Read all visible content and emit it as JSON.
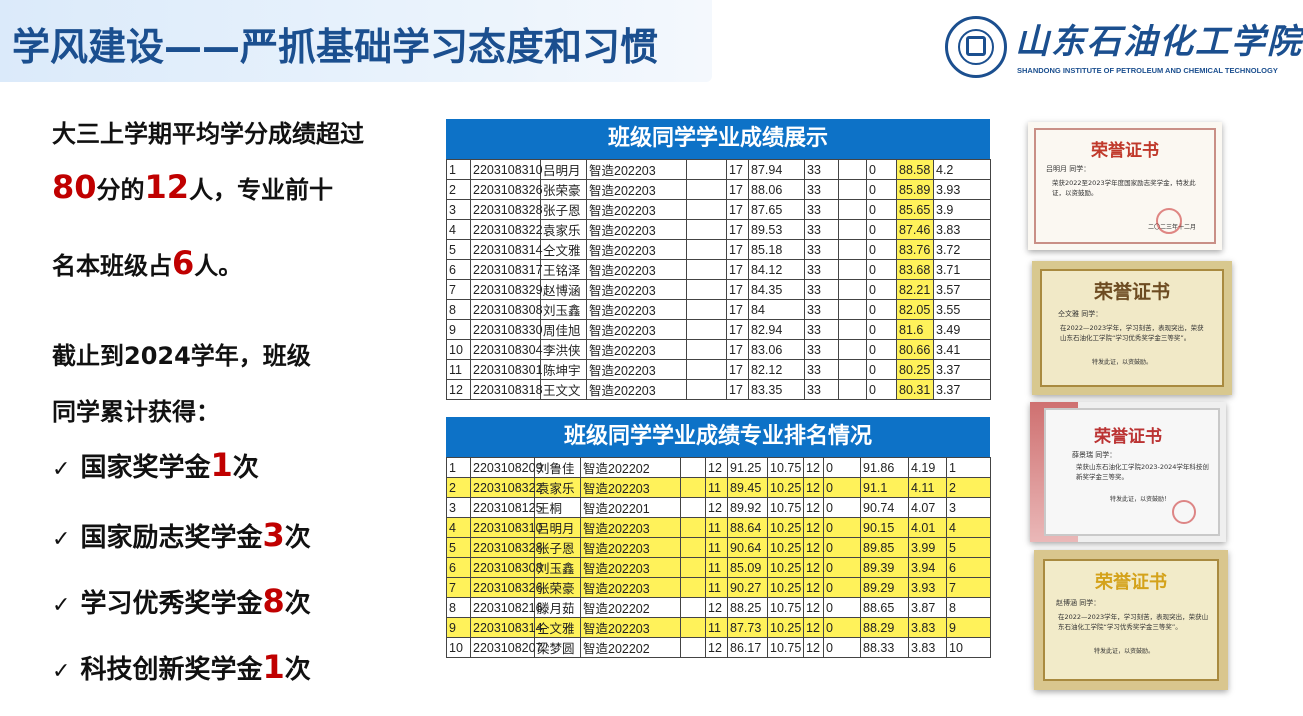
{
  "header": {
    "title": "学风建设——严抓基础学习态度和习惯"
  },
  "logo": {
    "cn": "山东石油化工学院",
    "en": "SHANDONG INSTITUTE OF PETROLEUM AND CHEMICAL TECHNOLOGY"
  },
  "left": {
    "p1_line1": "大三上学期平均学分成绩超过",
    "p1_n1": "80",
    "p1_t1": "分的",
    "p1_n2": "12",
    "p1_t2": "人，专业前十",
    "p1_t3": "名本班级占",
    "p1_n3": "6",
    "p1_t4": "人。",
    "p2_line1": "截止到2024学年，班级",
    "p2_line2": "同学累计获得：",
    "checkmark": "✓",
    "awards": [
      {
        "pre": "国家奖学金",
        "num": "1",
        "post": "次"
      },
      {
        "pre": "国家励志奖学金",
        "num": "3",
        "post": "次"
      },
      {
        "pre": "学习优秀奖学金",
        "num": "8",
        "post": "次"
      },
      {
        "pre": "科技创新奖学金",
        "num": "1",
        "post": "次"
      }
    ]
  },
  "table1": {
    "title": "班级同学学业成绩展示",
    "rows": [
      [
        "1",
        "2203108310",
        "吕明月",
        "智造202203",
        "",
        "17",
        "87.94",
        "33",
        "",
        "0",
        "88.58",
        "4.2"
      ],
      [
        "2",
        "2203108326",
        "张荣豪",
        "智造202203",
        "",
        "17",
        "88.06",
        "33",
        "",
        "0",
        "85.89",
        "3.93"
      ],
      [
        "3",
        "2203108328",
        "张子恩",
        "智造202203",
        "",
        "17",
        "87.65",
        "33",
        "",
        "0",
        "85.65",
        "3.9"
      ],
      [
        "4",
        "2203108322",
        "袁家乐",
        "智造202203",
        "",
        "17",
        "89.53",
        "33",
        "",
        "0",
        "87.46",
        "3.83"
      ],
      [
        "5",
        "2203108314",
        "仝文雅",
        "智造202203",
        "",
        "17",
        "85.18",
        "33",
        "",
        "0",
        "83.76",
        "3.72"
      ],
      [
        "6",
        "2203108317",
        "王铭泽",
        "智造202203",
        "",
        "17",
        "84.12",
        "33",
        "",
        "0",
        "83.68",
        "3.71"
      ],
      [
        "7",
        "2203108329",
        "赵博涵",
        "智造202203",
        "",
        "17",
        "84.35",
        "33",
        "",
        "0",
        "82.21",
        "3.57"
      ],
      [
        "8",
        "2203108308",
        "刘玉鑫",
        "智造202203",
        "",
        "17",
        "84",
        "33",
        "",
        "0",
        "82.05",
        "3.55"
      ],
      [
        "9",
        "2203108330",
        "周佳旭",
        "智造202203",
        "",
        "17",
        "82.94",
        "33",
        "",
        "0",
        "81.6",
        "3.49"
      ],
      [
        "10",
        "2203108304",
        "李洪侠",
        "智造202203",
        "",
        "17",
        "83.06",
        "33",
        "",
        "0",
        "80.66",
        "3.41"
      ],
      [
        "11",
        "2203108301",
        "陈坤宇",
        "智造202203",
        "",
        "17",
        "82.12",
        "33",
        "",
        "0",
        "80.25",
        "3.37"
      ],
      [
        "12",
        "2203108318",
        "王文文",
        "智造202203",
        "",
        "17",
        "83.35",
        "33",
        "",
        "0",
        "80.31",
        "3.37"
      ]
    ]
  },
  "table2": {
    "title": "班级同学学业成绩专业排名情况",
    "rows": [
      {
        "c": [
          "1",
          "2203108209",
          "刘鲁佳",
          "智造202202",
          "",
          "12",
          "91.25",
          "10.75",
          "12",
          "0",
          "91.86",
          "4.19",
          "1"
        ],
        "hl": false
      },
      {
        "c": [
          "2",
          "2203108322",
          "袁家乐",
          "智造202203",
          "",
          "11",
          "89.45",
          "10.25",
          "12",
          "0",
          "91.1",
          "4.11",
          "2"
        ],
        "hl": true
      },
      {
        "c": [
          "3",
          "2203108125",
          "王桐",
          "智造202201",
          "",
          "12",
          "89.92",
          "10.75",
          "12",
          "0",
          "90.74",
          "4.07",
          "3"
        ],
        "hl": false
      },
      {
        "c": [
          "4",
          "2203108310",
          "吕明月",
          "智造202203",
          "",
          "11",
          "88.64",
          "10.25",
          "12",
          "0",
          "90.15",
          "4.01",
          "4"
        ],
        "hl": true
      },
      {
        "c": [
          "5",
          "2203108328",
          "张子恩",
          "智造202203",
          "",
          "11",
          "90.64",
          "10.25",
          "12",
          "0",
          "89.85",
          "3.99",
          "5"
        ],
        "hl": true
      },
      {
        "c": [
          "6",
          "2203108308",
          "刘玉鑫",
          "智造202203",
          "",
          "11",
          "85.09",
          "10.25",
          "12",
          "0",
          "89.39",
          "3.94",
          "6"
        ],
        "hl": true
      },
      {
        "c": [
          "7",
          "2203108326",
          "张荣豪",
          "智造202203",
          "",
          "11",
          "90.27",
          "10.25",
          "12",
          "0",
          "89.29",
          "3.93",
          "7"
        ],
        "hl": true
      },
      {
        "c": [
          "8",
          "2203108216",
          "滕月茹",
          "智造202202",
          "",
          "12",
          "88.25",
          "10.75",
          "12",
          "0",
          "88.65",
          "3.87",
          "8"
        ],
        "hl": false
      },
      {
        "c": [
          "9",
          "2203108314",
          "仝文雅",
          "智造202203",
          "",
          "11",
          "87.73",
          "10.25",
          "12",
          "0",
          "88.29",
          "3.83",
          "9"
        ],
        "hl": true
      },
      {
        "c": [
          "10",
          "2203108207",
          "梁梦圆",
          "智造202202",
          "",
          "12",
          "86.17",
          "10.75",
          "12",
          "0",
          "88.33",
          "3.83",
          "10"
        ],
        "hl": false
      }
    ]
  },
  "certs": [
    {
      "title": "荣誉证书",
      "name_line": "吕明月 同学：",
      "body": "荣获2022至2023学年度国家励志奖学金，特发此证，以资鼓励。",
      "date": "二〇二三年十二月"
    },
    {
      "title": "荣誉证书",
      "name_line": "仝文雅 同学：",
      "body": "在2022—2023学年，学习刻苦，表现突出，荣获山东石油化工学院“学习优秀奖学金三等奖”。",
      "date": "特发此证，以资鼓励。"
    },
    {
      "title": "荣誉证书",
      "name_line": "薛景瑞 同学：",
      "body": "荣获山东石油化工学院2023-2024学年科技创新奖学金三等奖。",
      "date": "特发此证，以资鼓励！"
    },
    {
      "title": "荣誉证书",
      "name_line": "赵博涵 同学：",
      "body": "在2022—2023学年，学习刻苦，表现突出，荣获山东石油化工学院“学习优秀奖学金三等奖”。",
      "date": "特发此证，以资鼓励。"
    }
  ],
  "colors": {
    "title": "#1b4f8f",
    "accent_red": "#c00000",
    "table_header": "#0d72c7",
    "highlight": "#fff25a"
  }
}
